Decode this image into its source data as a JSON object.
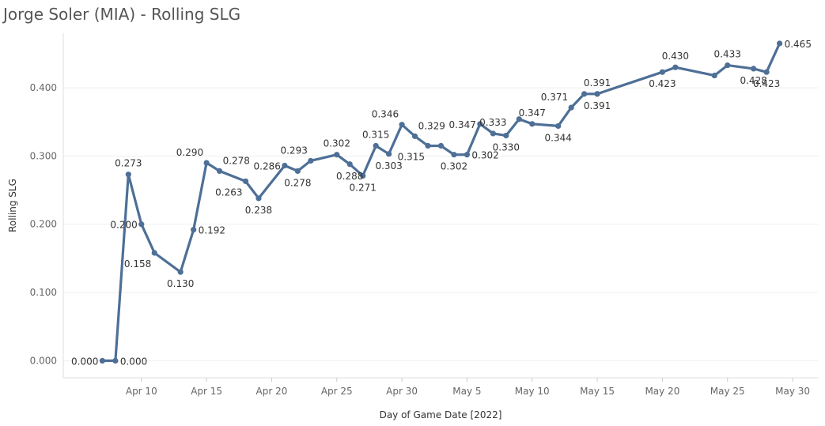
{
  "title": "Jorge Soler (MIA) - Rolling SLG",
  "chart_data": {
    "type": "line",
    "title": "Jorge Soler (MIA) - Rolling SLG",
    "xlabel": "Day of Game Date [2022]",
    "ylabel": "Rolling SLG",
    "xlim": [
      "2022-04-04",
      "2022-06-01"
    ],
    "ylim": [
      -0.025,
      0.48
    ],
    "grid": true,
    "x_ticks": [
      {
        "date": "2022-04-10",
        "label": "Apr 10"
      },
      {
        "date": "2022-04-15",
        "label": "Apr 15"
      },
      {
        "date": "2022-04-20",
        "label": "Apr 20"
      },
      {
        "date": "2022-04-25",
        "label": "Apr 25"
      },
      {
        "date": "2022-04-30",
        "label": "Apr 30"
      },
      {
        "date": "2022-05-05",
        "label": "May 5"
      },
      {
        "date": "2022-05-10",
        "label": "May 10"
      },
      {
        "date": "2022-05-15",
        "label": "May 15"
      },
      {
        "date": "2022-05-20",
        "label": "May 20"
      },
      {
        "date": "2022-05-25",
        "label": "May 25"
      },
      {
        "date": "2022-05-30",
        "label": "May 30"
      }
    ],
    "y_ticks": [
      {
        "value": 0.0,
        "label": "0.000"
      },
      {
        "value": 0.1,
        "label": "0.100"
      },
      {
        "value": 0.2,
        "label": "0.200"
      },
      {
        "value": 0.3,
        "label": "0.300"
      },
      {
        "value": 0.4,
        "label": "0.400"
      }
    ],
    "series": [
      {
        "color": "#4e6f96",
        "points": [
          {
            "x": "2022-04-07",
            "y": 0.0,
            "label": "0.000",
            "pos": "left"
          },
          {
            "x": "2022-04-08",
            "y": 0.0,
            "label": "0.000",
            "pos": "right"
          },
          {
            "x": "2022-04-09",
            "y": 0.273,
            "label": "0.273",
            "pos": "above"
          },
          {
            "x": "2022-04-10",
            "y": 0.2,
            "label": "0.200",
            "pos": "left"
          },
          {
            "x": "2022-04-11",
            "y": 0.158,
            "label": "0.158",
            "pos": "below-left"
          },
          {
            "x": "2022-04-13",
            "y": 0.13,
            "label": "0.130",
            "pos": "below"
          },
          {
            "x": "2022-04-14",
            "y": 0.192,
            "label": "0.192",
            "pos": "right"
          },
          {
            "x": "2022-04-15",
            "y": 0.29,
            "label": "0.290",
            "pos": "above-left"
          },
          {
            "x": "2022-04-16",
            "y": 0.278,
            "label": "0.278",
            "pos": "above-right"
          },
          {
            "x": "2022-04-18",
            "y": 0.263,
            "label": "0.263",
            "pos": "below-left"
          },
          {
            "x": "2022-04-19",
            "y": 0.238,
            "label": "0.238",
            "pos": "below"
          },
          {
            "x": "2022-04-21",
            "y": 0.286,
            "label": "0.286",
            "pos": "left"
          },
          {
            "x": "2022-04-22",
            "y": 0.278,
            "label": "0.278",
            "pos": "below"
          },
          {
            "x": "2022-04-23",
            "y": 0.293,
            "label": "0.293",
            "pos": "above-left"
          },
          {
            "x": "2022-04-25",
            "y": 0.302,
            "label": "0.302",
            "pos": "above"
          },
          {
            "x": "2022-04-26",
            "y": 0.288,
            "label": "0.288",
            "pos": "below"
          },
          {
            "x": "2022-04-27",
            "y": 0.271,
            "label": "0.271",
            "pos": "below"
          },
          {
            "x": "2022-04-28",
            "y": 0.315,
            "label": "0.315",
            "pos": "above"
          },
          {
            "x": "2022-04-29",
            "y": 0.303,
            "label": "0.303",
            "pos": "below"
          },
          {
            "x": "2022-04-30",
            "y": 0.346,
            "label": "0.346",
            "pos": "above-left"
          },
          {
            "x": "2022-05-01",
            "y": 0.329,
            "label": "0.329",
            "pos": "above-right"
          },
          {
            "x": "2022-05-02",
            "y": 0.315,
            "label": "0.315",
            "pos": "below-left"
          },
          {
            "x": "2022-05-03",
            "y": 0.315,
            "label": "",
            "pos": "none"
          },
          {
            "x": "2022-05-04",
            "y": 0.302,
            "label": "0.302",
            "pos": "below"
          },
          {
            "x": "2022-05-05",
            "y": 0.302,
            "label": "0.302",
            "pos": "right"
          },
          {
            "x": "2022-05-06",
            "y": 0.347,
            "label": "0.347",
            "pos": "left"
          },
          {
            "x": "2022-05-07",
            "y": 0.333,
            "label": "0.333",
            "pos": "above"
          },
          {
            "x": "2022-05-08",
            "y": 0.33,
            "label": "0.330",
            "pos": "below"
          },
          {
            "x": "2022-05-09",
            "y": 0.354,
            "label": "",
            "pos": "none"
          },
          {
            "x": "2022-05-10",
            "y": 0.347,
            "label": "0.347",
            "pos": "above"
          },
          {
            "x": "2022-05-12",
            "y": 0.344,
            "label": "0.344",
            "pos": "below"
          },
          {
            "x": "2022-05-13",
            "y": 0.371,
            "label": "0.371",
            "pos": "above-left"
          },
          {
            "x": "2022-05-14",
            "y": 0.391,
            "label": "",
            "pos": "none"
          },
          {
            "x": "2022-05-15",
            "y": 0.391,
            "label": "0.391",
            "pos": "above"
          },
          {
            "x": "2022-05-15",
            "y": 0.391,
            "label": "0.391",
            "pos": "below"
          },
          {
            "x": "2022-05-20",
            "y": 0.423,
            "label": "0.423",
            "pos": "below"
          },
          {
            "x": "2022-05-21",
            "y": 0.43,
            "label": "0.430",
            "pos": "above"
          },
          {
            "x": "2022-05-24",
            "y": 0.418,
            "label": "",
            "pos": "none"
          },
          {
            "x": "2022-05-25",
            "y": 0.433,
            "label": "0.433",
            "pos": "above"
          },
          {
            "x": "2022-05-27",
            "y": 0.428,
            "label": "0.428",
            "pos": "below"
          },
          {
            "x": "2022-05-28",
            "y": 0.423,
            "label": "0.423",
            "pos": "below"
          },
          {
            "x": "2022-05-29",
            "y": 0.465,
            "label": "0.465",
            "pos": "right"
          }
        ]
      }
    ]
  }
}
